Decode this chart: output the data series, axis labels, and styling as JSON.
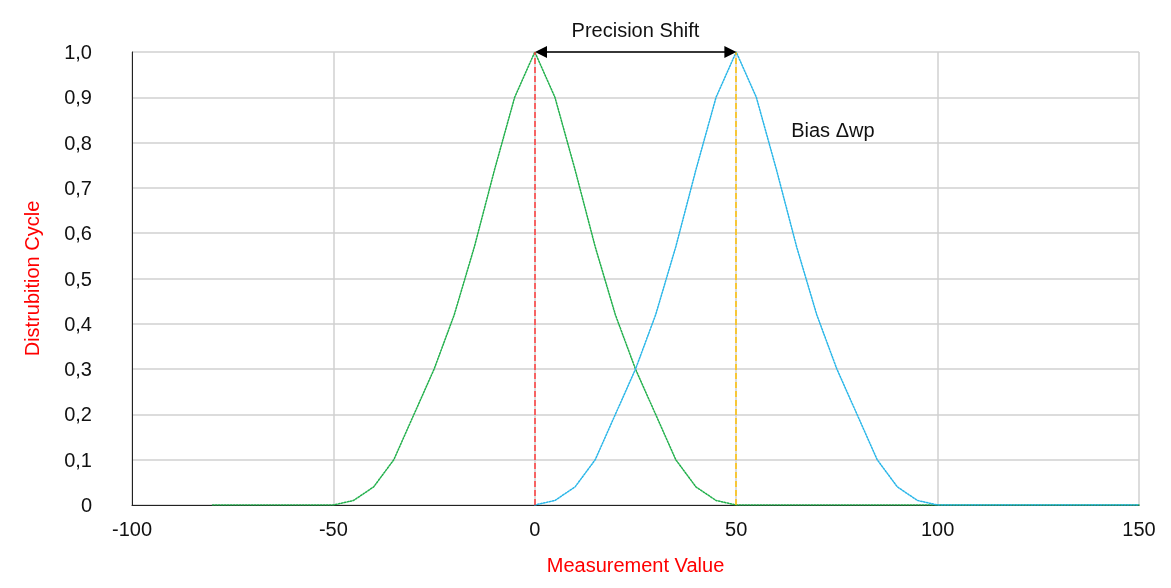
{
  "chart_data": {
    "type": "line",
    "xlabel": "Measurement Value",
    "ylabel": "Distrubition Cycle",
    "xlim": [
      -100,
      150
    ],
    "xticks": [
      -100,
      -50,
      0,
      50,
      100,
      150
    ],
    "ylim": [
      0,
      1
    ],
    "yticks": [
      {
        "value": 0,
        "label": "0"
      },
      {
        "value": 0.1,
        "label": "0,1"
      },
      {
        "value": 0.2,
        "label": "0,2"
      },
      {
        "value": 0.3,
        "label": "0,3"
      },
      {
        "value": 0.4,
        "label": "0,4"
      },
      {
        "value": 0.5,
        "label": "0,5"
      },
      {
        "value": 0.6,
        "label": "0,6"
      },
      {
        "value": 0.7,
        "label": "0,7"
      },
      {
        "value": 0.8,
        "label": "0,8"
      },
      {
        "value": 0.9,
        "label": "0,9"
      },
      {
        "value": 1,
        "label": "1,0"
      }
    ],
    "grid": true,
    "marker": "none",
    "line_style": "dotted",
    "series": [
      {
        "color": "#22b04c",
        "x": [
          -80,
          -50,
          -45,
          -40,
          -35,
          -30,
          -25,
          -20,
          -15,
          -10,
          -5,
          0,
          5,
          10,
          15,
          20,
          25,
          30,
          35,
          40,
          45,
          50,
          150
        ],
        "values": [
          0,
          0,
          0.01,
          0.04,
          0.1,
          0.2,
          0.3,
          0.42,
          0.57,
          0.74,
          0.9,
          1,
          0.9,
          0.74,
          0.57,
          0.42,
          0.3,
          0.2,
          0.1,
          0.04,
          0.01,
          0,
          0
        ]
      },
      {
        "color": "#29b6e8",
        "x": [
          0,
          5,
          10,
          15,
          20,
          25,
          30,
          35,
          40,
          45,
          50,
          55,
          60,
          65,
          70,
          75,
          80,
          85,
          90,
          95,
          100,
          150
        ],
        "values": [
          0,
          0.01,
          0.04,
          0.1,
          0.2,
          0.3,
          0.42,
          0.57,
          0.74,
          0.9,
          1,
          0.9,
          0.74,
          0.57,
          0.42,
          0.3,
          0.2,
          0.1,
          0.04,
          0.01,
          0,
          0
        ]
      }
    ],
    "ref_lines": [
      {
        "axis": "x",
        "value": 0,
        "color": "#ff3b3b",
        "line_style": "dashed"
      },
      {
        "axis": "x",
        "value": 50,
        "color": "#ffc000",
        "line_style": "dashed"
      }
    ],
    "annotations": [
      "Precision Shift",
      "Bias Δwp"
    ]
  }
}
